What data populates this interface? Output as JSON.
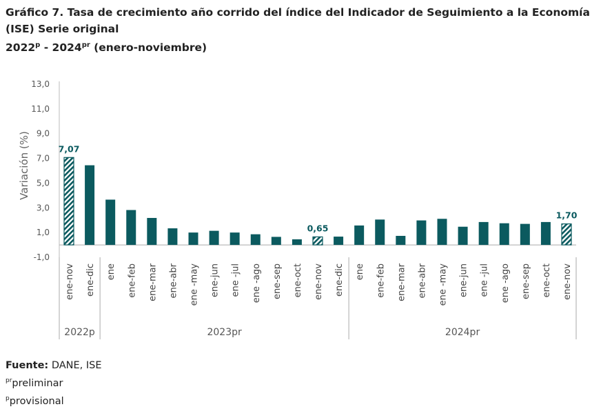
{
  "title": {
    "line1": "Gráfico 7. Tasa de crecimiento año corrido del índice del Indicador de Seguimiento a la Economía",
    "line2": "(ISE) Serie original",
    "line3_a": "2022",
    "line3_sup_a": "p",
    "line3_b": " - 2024",
    "line3_sup_b": "pr",
    "line3_c": " (enero-noviembre)"
  },
  "chart_data": {
    "type": "bar",
    "ylabel": "Variación (%)",
    "ylim": [
      -1,
      13
    ],
    "yticks": [
      "13,0",
      "11,0",
      "9,0",
      "7,0",
      "5,0",
      "3,0",
      "1,0",
      "-1,0"
    ],
    "ytick_values": [
      13,
      11,
      9,
      7,
      5,
      3,
      1,
      -1
    ],
    "grid": false,
    "color": "#0b5a5f",
    "categories": [
      "ene-nov",
      "ene-dic",
      "ene",
      "ene-feb",
      "ene-mar",
      "ene-abr",
      "ene -may",
      "ene-jun",
      "ene -jul",
      "ene -ago",
      "ene-sep",
      "ene-oct",
      "ene-nov",
      "ene-dic",
      "ene",
      "ene-feb",
      "ene-mar",
      "ene-abr",
      "ene -may",
      "ene-jun",
      "ene -jul",
      "ene -ago",
      "ene-sep",
      "ene-oct",
      "ene-nov"
    ],
    "values": [
      7.07,
      6.44,
      3.66,
      2.82,
      2.18,
      1.34,
      1.0,
      1.14,
      1.0,
      0.86,
      0.65,
      0.45,
      0.65,
      0.67,
      1.57,
      2.05,
      0.73,
      1.98,
      2.11,
      1.47,
      1.85,
      1.75,
      1.7,
      1.85,
      1.7
    ],
    "hatched": [
      true,
      false,
      false,
      false,
      false,
      false,
      false,
      false,
      false,
      false,
      false,
      false,
      true,
      false,
      false,
      false,
      false,
      false,
      false,
      false,
      false,
      false,
      false,
      false,
      true
    ],
    "data_labels": [
      {
        "index": 0,
        "text": "7,07"
      },
      {
        "index": 12,
        "text": "0,65"
      },
      {
        "index": 24,
        "text": "1,70"
      }
    ],
    "groups": [
      {
        "label": "2022p",
        "start": 0,
        "end": 1
      },
      {
        "label": "2023pr",
        "start": 2,
        "end": 13
      },
      {
        "label": "2024pr",
        "start": 14,
        "end": 24
      }
    ]
  },
  "source": {
    "label": "Fuente:",
    "text": " DANE, ISE",
    "note1_sup": "pr",
    "note1": "preliminar",
    "note2_sup": "p",
    "note2": "provisional"
  }
}
